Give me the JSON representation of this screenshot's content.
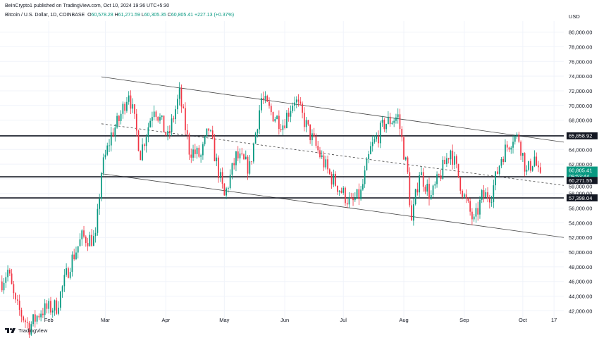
{
  "header": {
    "published": "BeInCrypto1 published on TradingView.com, Oct 10, 2024 19:36 UTC+5:30",
    "symbol": "Bitcoin / U.S. Dollar, 1D, COINBASE",
    "ohlc": {
      "o_label": "O",
      "o": "60,578.28",
      "h_label": "H",
      "h": "61,271.59",
      "l_label": "L",
      "l": "60,305.35",
      "c_label": "C",
      "c": "60,805.41",
      "change": "+227.13 (+0.37%)"
    }
  },
  "currency": "USD",
  "footer": {
    "brand": "TradingView"
  },
  "colors": {
    "up": "#089981",
    "down": "#f23645",
    "price_tag": "#089981",
    "level_tag": "#131722",
    "grid": "#f0f3fa",
    "text": "#131722"
  },
  "chart_data": {
    "type": "candlestick",
    "symbol": "BTCUSD",
    "interval": "1D",
    "ylim": [
      40500,
      81500
    ],
    "y_ticks": [
      42000,
      44000,
      46000,
      48000,
      50000,
      52000,
      54000,
      56000,
      58000,
      60000,
      62000,
      64000,
      66000,
      68000,
      70000,
      72000,
      74000,
      76000,
      78000,
      80000
    ],
    "y_tick_labels": [
      "42,000.00",
      "44,000.00",
      "46,000.00",
      "48,000.00",
      "50,000.00",
      "52,000.00",
      "54,000.00",
      "56,000.00",
      "58,000.00",
      "60,000.00",
      "62,000.00",
      "64,000.00",
      "66,000.00",
      "68,000.00",
      "70,000.00",
      "72,000.00",
      "74,000.00",
      "76,000.00",
      "78,000.00",
      "80,000.00"
    ],
    "x_ticks": [
      {
        "label": "Feb",
        "date": "2024-02-01"
      },
      {
        "label": "Mar",
        "date": "2024-03-01"
      },
      {
        "label": "Apr",
        "date": "2024-04-01"
      },
      {
        "label": "May",
        "date": "2024-05-01"
      },
      {
        "label": "Jun",
        "date": "2024-06-01"
      },
      {
        "label": "Jul",
        "date": "2024-07-01"
      },
      {
        "label": "Aug",
        "date": "2024-08-01"
      },
      {
        "label": "Sep",
        "date": "2024-09-01"
      },
      {
        "label": "Oct",
        "date": "2024-10-01"
      },
      {
        "label": "17",
        "date": "2024-10-17"
      }
    ],
    "x_range": [
      "2024-01-07",
      "2024-10-22"
    ],
    "grid": true,
    "anchors": [
      [
        "2024-01-08",
        46000
      ],
      [
        "2024-01-11",
        47500
      ],
      [
        "2024-01-15",
        42800
      ],
      [
        "2024-01-22",
        39800
      ],
      [
        "2024-01-28",
        42000
      ],
      [
        "2024-02-05",
        42600
      ],
      [
        "2024-02-12",
        48500
      ],
      [
        "2024-02-18",
        52000
      ],
      [
        "2024-02-25",
        51700
      ],
      [
        "2024-02-28",
        61000
      ],
      [
        "2024-03-04",
        66000
      ],
      [
        "2024-03-08",
        68000
      ],
      [
        "2024-03-13",
        72000
      ],
      [
        "2024-03-19",
        63500
      ],
      [
        "2024-03-26",
        70000
      ],
      [
        "2024-04-02",
        65500
      ],
      [
        "2024-04-08",
        71500
      ],
      [
        "2024-04-13",
        64000
      ],
      [
        "2024-04-19",
        63000
      ],
      [
        "2024-04-23",
        66800
      ],
      [
        "2024-05-01",
        57500
      ],
      [
        "2024-05-07",
        63000
      ],
      [
        "2024-05-14",
        61500
      ],
      [
        "2024-05-20",
        71000
      ],
      [
        "2024-05-25",
        69000
      ],
      [
        "2024-05-31",
        67500
      ],
      [
        "2024-06-06",
        71000
      ],
      [
        "2024-06-14",
        66000
      ],
      [
        "2024-06-24",
        60500
      ],
      [
        "2024-07-05",
        56500
      ],
      [
        "2024-07-10",
        58000
      ],
      [
        "2024-07-15",
        64000
      ],
      [
        "2024-07-22",
        67500
      ],
      [
        "2024-07-29",
        68500
      ],
      [
        "2024-08-03",
        60500
      ],
      [
        "2024-08-05",
        54000
      ],
      [
        "2024-08-09",
        61000
      ],
      [
        "2024-08-15",
        57500
      ],
      [
        "2024-08-25",
        64000
      ],
      [
        "2024-09-01",
        57500
      ],
      [
        "2024-09-06",
        54000
      ],
      [
        "2024-09-10",
        57500
      ],
      [
        "2024-09-15",
        58000
      ],
      [
        "2024-09-20",
        63000
      ],
      [
        "2024-09-26",
        65800
      ],
      [
        "2024-09-29",
        65500
      ],
      [
        "2024-10-03",
        60800
      ],
      [
        "2024-10-07",
        63000
      ],
      [
        "2024-10-09",
        60580
      ],
      [
        "2024-10-10",
        60805
      ]
    ],
    "horizontal_levels": [
      {
        "value": 65858.92,
        "label": "65,858.92"
      },
      {
        "value": 60271.55,
        "label": "60,271.55"
      },
      {
        "value": 57398.04,
        "label": "57,398.04"
      }
    ],
    "trendlines": [
      {
        "name": "channel-upper",
        "style": "solid",
        "points": [
          [
            "2024-02-28",
            73900
          ],
          [
            "2024-10-22",
            65000
          ]
        ]
      },
      {
        "name": "channel-mid",
        "style": "dashed",
        "points": [
          [
            "2024-02-28",
            67500
          ],
          [
            "2024-10-22",
            59100
          ]
        ]
      },
      {
        "name": "channel-lower",
        "style": "solid",
        "points": [
          [
            "2024-02-28",
            60700
          ],
          [
            "2024-10-22",
            52000
          ]
        ]
      }
    ],
    "last_price": {
      "value": 60805.41,
      "label": "60,805.41",
      "countdown": "09:53:44"
    },
    "hidden_tick_label": "59,000.00"
  }
}
